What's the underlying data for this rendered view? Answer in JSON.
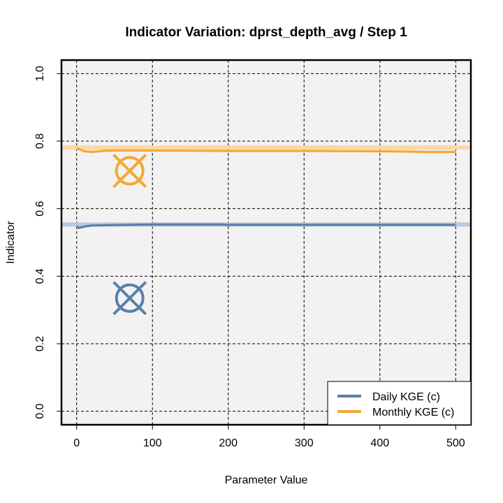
{
  "chart_data": {
    "type": "line",
    "title": "Indicator Variation: dprst_depth_avg / Step 1",
    "xlabel": "Parameter Value",
    "ylabel": "Indicator",
    "xlim": [
      -20,
      520
    ],
    "ylim": [
      -0.04,
      1.04
    ],
    "xticks": [
      0,
      100,
      200,
      300,
      400,
      500
    ],
    "yticks": [
      0.0,
      0.2,
      0.4,
      0.6,
      0.8,
      1.0
    ],
    "ytick_labels": [
      "0.0",
      "0.2",
      "0.4",
      "0.6",
      "0.8",
      "1.0"
    ],
    "grid": true,
    "background": "#f2f2f2",
    "legend_position": "bottom-right",
    "series": [
      {
        "name": "Daily KGE (c)",
        "color": "#5b7fad",
        "reference_color": "#b8c9dd",
        "reference_value": 0.553,
        "x": [
          0,
          3,
          10,
          20,
          40,
          70,
          100,
          150,
          190,
          200,
          300,
          400,
          500
        ],
        "values": [
          0.548,
          0.543,
          0.547,
          0.55,
          0.551,
          0.552,
          0.553,
          0.553,
          0.553,
          0.552,
          0.552,
          0.552,
          0.552
        ],
        "marker": {
          "x": 70,
          "y": 0.335
        }
      },
      {
        "name": "Monthly KGE (c)",
        "color": "#f4a835",
        "reference_color": "#fcd8a6",
        "reference_value": 0.781,
        "x": [
          0,
          5,
          10,
          20,
          40,
          60,
          100,
          200,
          300,
          400,
          440,
          460,
          500
        ],
        "values": [
          0.779,
          0.775,
          0.77,
          0.768,
          0.772,
          0.772,
          0.772,
          0.771,
          0.771,
          0.77,
          0.769,
          0.768,
          0.768
        ],
        "marker": {
          "x": 70,
          "y": 0.712
        }
      }
    ]
  }
}
